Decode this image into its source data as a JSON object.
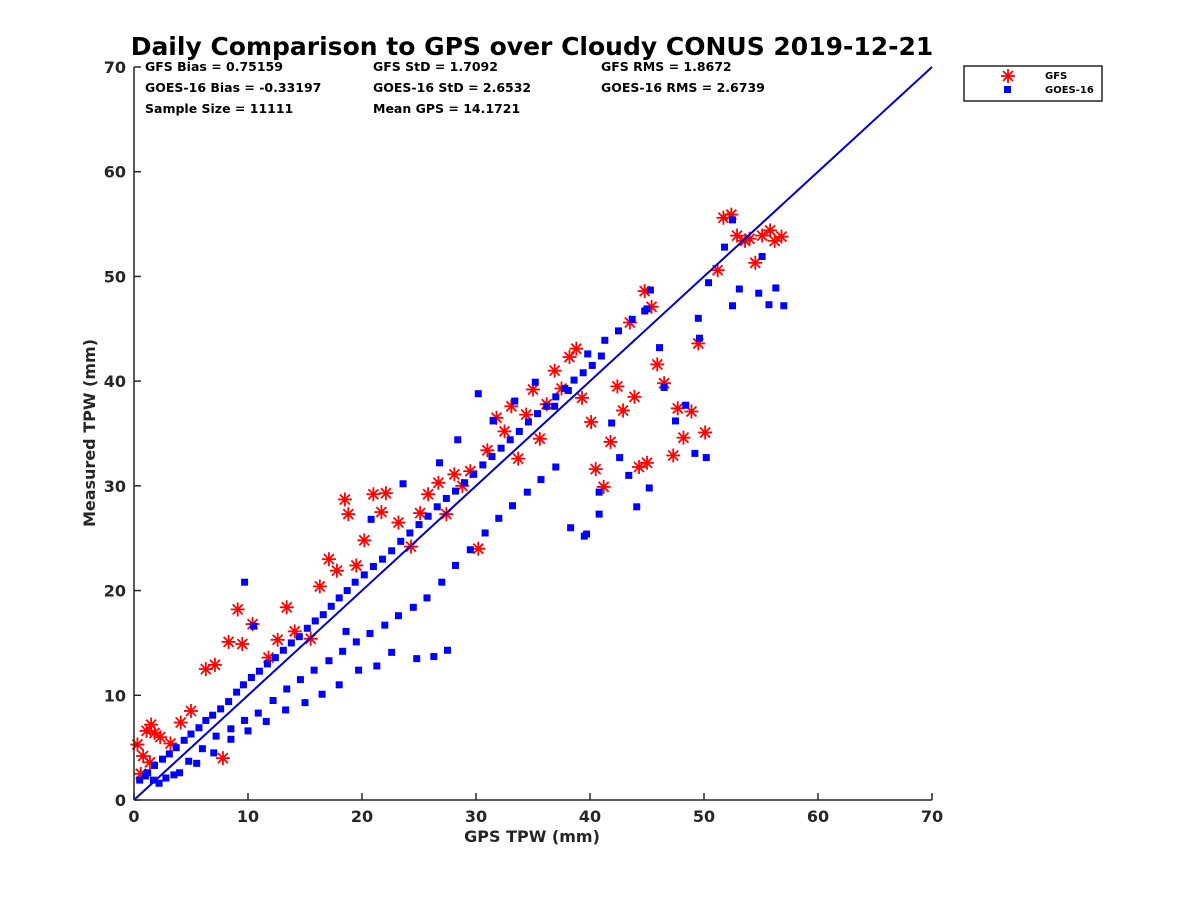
{
  "chart_data": {
    "type": "scatter",
    "title": "Daily Comparison to GPS over Cloudy CONUS 2019-12-21",
    "xlabel": "GPS TPW (mm)",
    "ylabel": "Measured TPW (mm)",
    "xlim": [
      0,
      70
    ],
    "ylim": [
      0,
      70
    ],
    "xticks": [
      "0",
      "10",
      "20",
      "30",
      "40",
      "50",
      "60",
      "70"
    ],
    "yticks": [
      "0",
      "10",
      "20",
      "30",
      "40",
      "50",
      "60",
      "70"
    ],
    "grid": false,
    "legend_position": "outside-top-right",
    "reference_line": {
      "x": [
        0,
        70
      ],
      "y": [
        0,
        70
      ],
      "color": "#0000cc"
    },
    "stats": [
      [
        "GFS Bias = 0.75159",
        "GFS StD = 1.7092",
        "GFS RMS = 1.8672"
      ],
      [
        "GOES-16 Bias = -0.33197",
        "GOES-16 StD = 2.6532",
        "GOES-16 RMS = 2.6739"
      ],
      [
        "Sample Size = 11111",
        "Mean GPS = 14.1721",
        ""
      ]
    ],
    "series": [
      {
        "name": "GFS",
        "marker": "asterisk",
        "color": "#ff0000",
        "points": [
          [
            0.3,
            5.3
          ],
          [
            0.6,
            2.5
          ],
          [
            1.1,
            6.6
          ],
          [
            1.5,
            7.2
          ],
          [
            1.8,
            6.4
          ],
          [
            2.3,
            6.0
          ],
          [
            0.8,
            4.2
          ],
          [
            1.4,
            3.6
          ],
          [
            3.2,
            5.4
          ],
          [
            4.1,
            7.4
          ],
          [
            5.0,
            8.5
          ],
          [
            6.3,
            12.5
          ],
          [
            7.1,
            12.9
          ],
          [
            8.3,
            15.1
          ],
          [
            9.1,
            18.2
          ],
          [
            7.8,
            4.0
          ],
          [
            9.5,
            14.9
          ],
          [
            10.4,
            16.8
          ],
          [
            11.8,
            13.6
          ],
          [
            12.6,
            15.3
          ],
          [
            13.4,
            18.4
          ],
          [
            14.1,
            16.1
          ],
          [
            15.5,
            15.4
          ],
          [
            16.3,
            20.4
          ],
          [
            17.1,
            23.0
          ],
          [
            17.8,
            21.9
          ],
          [
            18.5,
            28.7
          ],
          [
            18.8,
            27.3
          ],
          [
            19.5,
            22.4
          ],
          [
            20.2,
            24.8
          ],
          [
            21.0,
            29.2
          ],
          [
            21.7,
            27.5
          ],
          [
            22.1,
            29.3
          ],
          [
            23.2,
            26.5
          ],
          [
            24.3,
            24.2
          ],
          [
            25.1,
            27.4
          ],
          [
            25.8,
            29.2
          ],
          [
            26.7,
            30.3
          ],
          [
            27.4,
            27.3
          ],
          [
            28.1,
            31.1
          ],
          [
            28.8,
            30.0
          ],
          [
            29.5,
            31.4
          ],
          [
            30.2,
            24.0
          ],
          [
            31.0,
            33.4
          ],
          [
            31.8,
            36.5
          ],
          [
            32.5,
            35.2
          ],
          [
            33.1,
            37.6
          ],
          [
            33.7,
            32.6
          ],
          [
            34.4,
            36.8
          ],
          [
            35.0,
            39.2
          ],
          [
            35.6,
            34.5
          ],
          [
            36.2,
            37.8
          ],
          [
            36.9,
            41.0
          ],
          [
            37.5,
            39.3
          ],
          [
            38.2,
            42.3
          ],
          [
            38.8,
            43.1
          ],
          [
            39.3,
            38.4
          ],
          [
            40.1,
            36.1
          ],
          [
            40.5,
            31.6
          ],
          [
            41.2,
            29.9
          ],
          [
            41.8,
            34.2
          ],
          [
            42.4,
            39.5
          ],
          [
            42.9,
            37.2
          ],
          [
            43.5,
            45.6
          ],
          [
            43.9,
            38.5
          ],
          [
            44.3,
            31.8
          ],
          [
            44.8,
            48.6
          ],
          [
            45.4,
            47.1
          ],
          [
            45.9,
            41.6
          ],
          [
            46.5,
            39.8
          ],
          [
            47.3,
            32.9
          ],
          [
            48.2,
            34.6
          ],
          [
            48.9,
            37.1
          ],
          [
            49.5,
            43.6
          ],
          [
            50.1,
            35.1
          ],
          [
            51.2,
            50.6
          ],
          [
            51.7,
            55.6
          ],
          [
            52.4,
            55.9
          ],
          [
            52.9,
            53.9
          ],
          [
            53.6,
            53.4
          ],
          [
            54.5,
            51.3
          ],
          [
            55.1,
            53.9
          ],
          [
            55.8,
            54.4
          ],
          [
            56.2,
            53.4
          ],
          [
            56.8,
            53.8
          ],
          [
            54.0,
            53.6
          ],
          [
            47.7,
            37.4
          ],
          [
            45.0,
            32.2
          ]
        ]
      },
      {
        "name": "GOES-16",
        "marker": "square",
        "color": "#0000ff",
        "points": [
          [
            0.5,
            1.9
          ],
          [
            1.2,
            2.6
          ],
          [
            1.8,
            3.3
          ],
          [
            2.5,
            3.9
          ],
          [
            3.1,
            4.4
          ],
          [
            3.7,
            5.0
          ],
          [
            4.4,
            5.7
          ],
          [
            5.0,
            6.3
          ],
          [
            5.7,
            6.9
          ],
          [
            6.3,
            7.6
          ],
          [
            6.9,
            8.1
          ],
          [
            7.6,
            8.7
          ],
          [
            8.3,
            9.4
          ],
          [
            9.0,
            10.3
          ],
          [
            9.6,
            11.0
          ],
          [
            10.3,
            11.7
          ],
          [
            11.0,
            12.3
          ],
          [
            11.7,
            13.0
          ],
          [
            12.4,
            13.6
          ],
          [
            13.1,
            14.3
          ],
          [
            13.8,
            15.0
          ],
          [
            14.5,
            15.6
          ],
          [
            15.2,
            16.4
          ],
          [
            15.9,
            17.1
          ],
          [
            16.6,
            17.7
          ],
          [
            17.3,
            18.5
          ],
          [
            18.0,
            19.3
          ],
          [
            18.7,
            20.0
          ],
          [
            19.4,
            20.8
          ],
          [
            20.2,
            21.5
          ],
          [
            21.0,
            22.3
          ],
          [
            21.8,
            23.0
          ],
          [
            22.6,
            23.8
          ],
          [
            23.4,
            24.7
          ],
          [
            24.2,
            25.5
          ],
          [
            25.0,
            26.3
          ],
          [
            25.8,
            27.1
          ],
          [
            26.6,
            28.0
          ],
          [
            27.4,
            28.8
          ],
          [
            28.2,
            29.5
          ],
          [
            29.0,
            30.3
          ],
          [
            29.8,
            31.1
          ],
          [
            30.6,
            32.0
          ],
          [
            31.4,
            32.8
          ],
          [
            32.2,
            33.6
          ],
          [
            33.0,
            34.4
          ],
          [
            33.8,
            35.2
          ],
          [
            34.6,
            36.1
          ],
          [
            35.4,
            36.9
          ],
          [
            36.2,
            37.6
          ],
          [
            37.0,
            38.5
          ],
          [
            37.8,
            39.3
          ],
          [
            38.6,
            40.1
          ],
          [
            39.4,
            40.8
          ],
          [
            40.2,
            41.5
          ],
          [
            41.0,
            42.4
          ],
          [
            2.2,
            1.6
          ],
          [
            3.5,
            2.4
          ],
          [
            4.8,
            3.7
          ],
          [
            6.0,
            4.9
          ],
          [
            7.2,
            6.1
          ],
          [
            8.5,
            6.8
          ],
          [
            9.7,
            7.6
          ],
          [
            10.9,
            8.3
          ],
          [
            12.2,
            9.5
          ],
          [
            13.4,
            10.6
          ],
          [
            14.6,
            11.5
          ],
          [
            15.8,
            12.4
          ],
          [
            17.1,
            13.3
          ],
          [
            18.3,
            14.2
          ],
          [
            19.5,
            15.1
          ],
          [
            20.7,
            15.9
          ],
          [
            22.0,
            16.7
          ],
          [
            23.2,
            17.6
          ],
          [
            24.5,
            18.4
          ],
          [
            25.7,
            19.3
          ],
          [
            27.0,
            20.8
          ],
          [
            28.2,
            22.4
          ],
          [
            29.5,
            23.9
          ],
          [
            30.8,
            25.5
          ],
          [
            32.0,
            26.9
          ],
          [
            33.2,
            28.1
          ],
          [
            34.5,
            29.4
          ],
          [
            35.7,
            30.6
          ],
          [
            37.0,
            31.8
          ],
          [
            38.3,
            26.0
          ],
          [
            39.5,
            25.2
          ],
          [
            40.8,
            27.3
          ],
          [
            27.5,
            14.3
          ],
          [
            26.3,
            13.7
          ],
          [
            24.8,
            13.5
          ],
          [
            22.6,
            14.1
          ],
          [
            21.3,
            12.8
          ],
          [
            19.7,
            12.4
          ],
          [
            18.0,
            11.0
          ],
          [
            16.5,
            10.1
          ],
          [
            15.0,
            9.3
          ],
          [
            13.3,
            8.6
          ],
          [
            11.6,
            7.5
          ],
          [
            10.0,
            6.6
          ],
          [
            8.5,
            5.8
          ],
          [
            7.0,
            4.5
          ],
          [
            5.5,
            3.5
          ],
          [
            4.0,
            2.6
          ],
          [
            2.8,
            2.1
          ],
          [
            1.7,
            1.9
          ],
          [
            1.0,
            2.3
          ],
          [
            9.7,
            20.8
          ],
          [
            10.5,
            16.6
          ],
          [
            18.6,
            16.1
          ],
          [
            20.8,
            26.8
          ],
          [
            23.6,
            30.2
          ],
          [
            26.8,
            32.2
          ],
          [
            28.4,
            34.4
          ],
          [
            30.2,
            38.8
          ],
          [
            31.5,
            36.2
          ],
          [
            33.4,
            38.1
          ],
          [
            35.2,
            39.9
          ],
          [
            36.9,
            37.6
          ],
          [
            38.1,
            39.1
          ],
          [
            39.8,
            42.6
          ],
          [
            41.3,
            43.9
          ],
          [
            42.5,
            44.8
          ],
          [
            43.7,
            45.9
          ],
          [
            44.8,
            46.7
          ],
          [
            45.3,
            48.7
          ],
          [
            45.0,
            46.9
          ],
          [
            46.5,
            39.4
          ],
          [
            47.5,
            36.2
          ],
          [
            48.4,
            37.7
          ],
          [
            49.2,
            33.1
          ],
          [
            50.2,
            32.7
          ],
          [
            49.6,
            44.1
          ],
          [
            49.5,
            46.0
          ],
          [
            50.4,
            49.4
          ],
          [
            51.8,
            52.8
          ],
          [
            52.5,
            47.2
          ],
          [
            53.1,
            48.8
          ],
          [
            54.8,
            48.4
          ],
          [
            55.1,
            51.9
          ],
          [
            55.7,
            47.3
          ],
          [
            56.3,
            48.9
          ],
          [
            57.0,
            47.2
          ],
          [
            52.5,
            55.4
          ],
          [
            46.1,
            43.2
          ],
          [
            44.1,
            28.0
          ],
          [
            43.4,
            31.0
          ],
          [
            45.2,
            29.8
          ],
          [
            40.8,
            29.4
          ],
          [
            39.7,
            25.4
          ],
          [
            42.6,
            32.7
          ],
          [
            41.9,
            36.0
          ]
        ]
      }
    ]
  }
}
